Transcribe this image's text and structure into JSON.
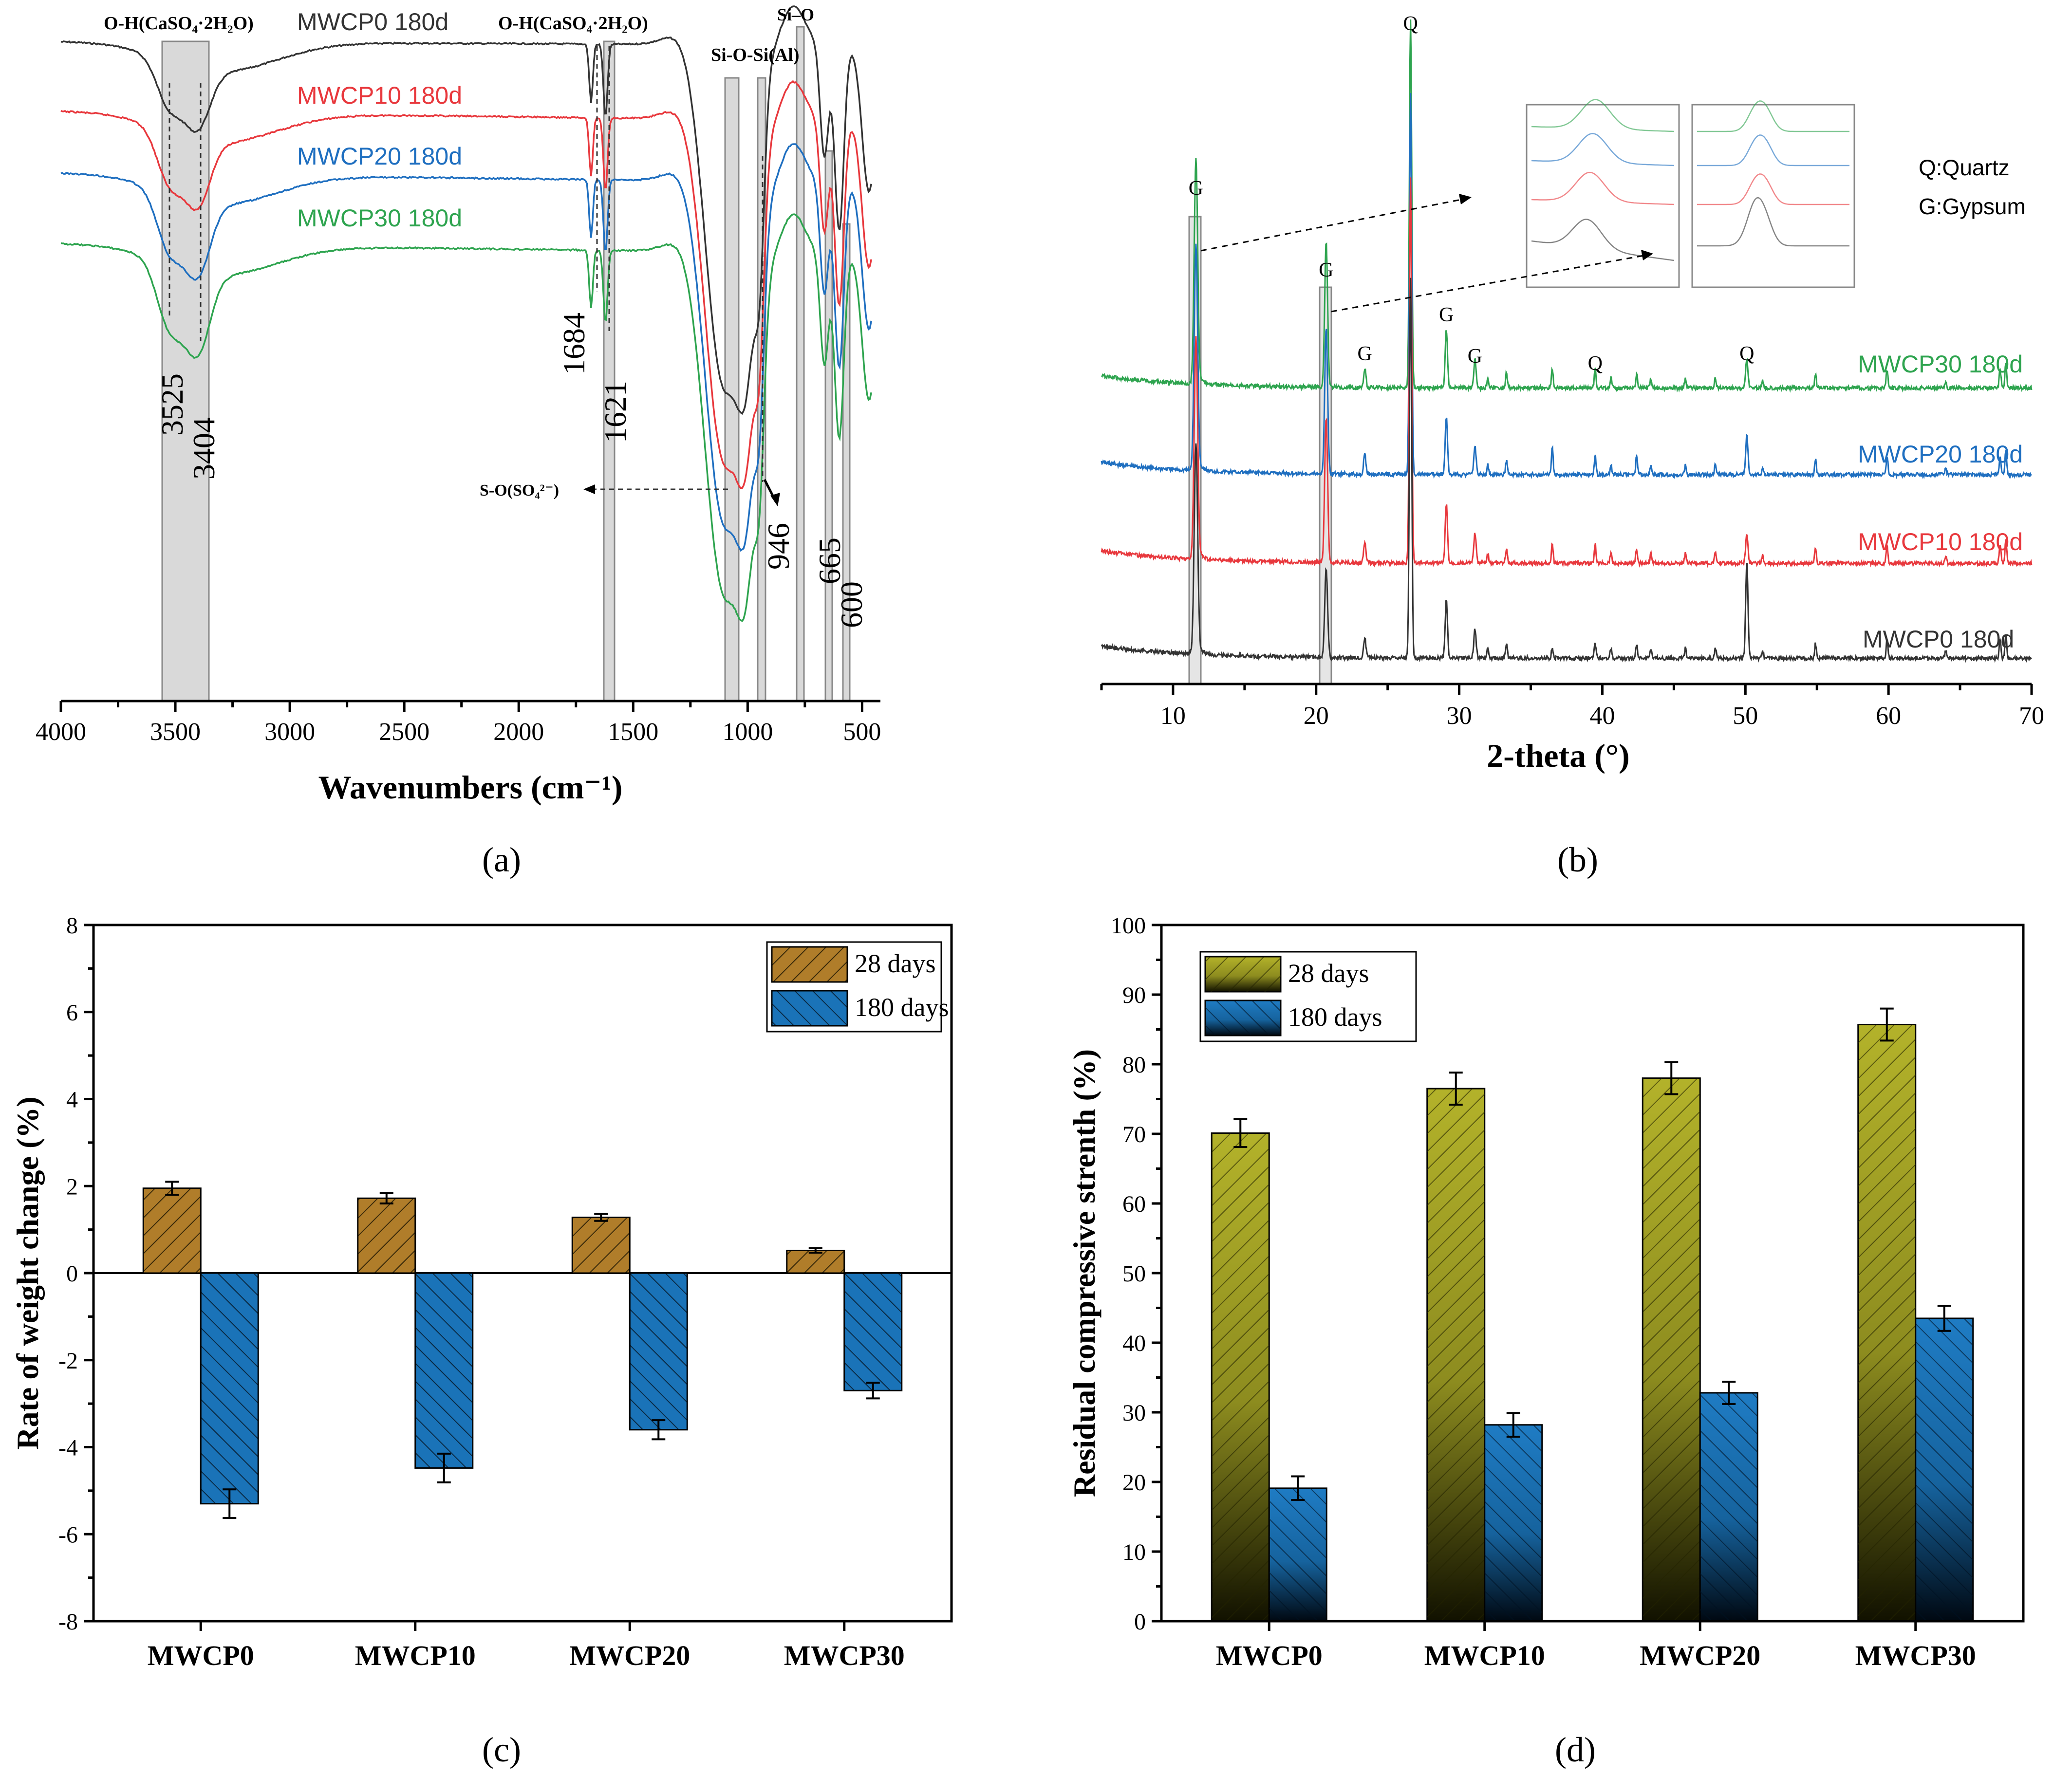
{
  "panels": {
    "a": "(a)",
    "b": "(b)",
    "c": "(c)",
    "d": "(d)"
  },
  "colors": {
    "black": "#333333",
    "red": "#e8383d",
    "blue": "#1f6fc0",
    "green": "#2ea44f",
    "band": "#d6d6d6",
    "bar28": "#b07d2a",
    "bar180": "#1a73b8",
    "bar28_d": "#a8a627",
    "bar180_d": "#1a73b8"
  },
  "chart_data": [
    {
      "type": "line",
      "panel": "a",
      "title": "",
      "xlabel": "Wavenumbers (cm⁻¹)",
      "ylabel": "",
      "xlim": [
        4000,
        400
      ],
      "xticks": [
        "4000",
        "3500",
        "3000",
        "2500",
        "2000",
        "1500",
        "1000",
        "500"
      ],
      "series": [
        {
          "name": "MWCP0  180d",
          "color": "#333333"
        },
        {
          "name": "MWCP10 180d",
          "color": "#e8383d"
        },
        {
          "name": "MWCP20 180d",
          "color": "#1f6fc0"
        },
        {
          "name": "MWCP30 180d",
          "color": "#2ea44f"
        }
      ],
      "band_labels": {
        "oh1": "O-H(CaSO₄·2H₂O)",
        "oh2": "O-H(CaSO₄·2H₂O)",
        "sio": "Si–O",
        "siosi": "Si-O-Si(Al)",
        "so": "S-O(SO₄²⁻)"
      },
      "peak_labels": [
        "3525",
        "3404",
        "1684",
        "1621",
        "946",
        "665",
        "600"
      ]
    },
    {
      "type": "line",
      "panel": "b",
      "xlabel": "2-theta (°)",
      "xlim": [
        5,
        70
      ],
      "xticks": [
        "10",
        "20",
        "30",
        "40",
        "50",
        "60",
        "70"
      ],
      "series": [
        {
          "name": "MWCP30 180d",
          "color": "#2ea44f"
        },
        {
          "name": "MWCP20 180d",
          "color": "#1f6fc0"
        },
        {
          "name": "MWCP10 180d",
          "color": "#e8383d"
        },
        {
          "name": "MWCP0  180d",
          "color": "#333333"
        }
      ],
      "peaks": [
        {
          "x": 11.6,
          "label": "G"
        },
        {
          "x": 20.7,
          "label": "G"
        },
        {
          "x": 23.4,
          "label": "G"
        },
        {
          "x": 26.6,
          "label": "Q"
        },
        {
          "x": 29.1,
          "label": "G"
        },
        {
          "x": 31.1,
          "label": "G"
        },
        {
          "x": 39.5,
          "label": "Q"
        },
        {
          "x": 50.1,
          "label": "Q"
        }
      ],
      "legend_text": [
        "Q:Quartz",
        "G:Gypsum"
      ]
    },
    {
      "type": "bar",
      "panel": "c",
      "categories": [
        "MWCP0",
        "MWCP10",
        "MWCP20",
        "MWCP30"
      ],
      "ylabel": "Rate of weight change (%)",
      "ylim": [
        -8,
        8
      ],
      "yticks": [
        "8",
        "6",
        "4",
        "2",
        "0",
        "-2",
        "-4",
        "-6",
        "-8"
      ],
      "series": [
        {
          "name": "28 days",
          "values": [
            1.95,
            1.72,
            1.28,
            0.52
          ],
          "errors": [
            0.15,
            0.12,
            0.08,
            0.05
          ]
        },
        {
          "name": "180 days",
          "values": [
            -5.3,
            -4.48,
            -3.6,
            -2.7
          ],
          "errors": [
            0.33,
            0.33,
            0.22,
            0.18
          ]
        }
      ]
    },
    {
      "type": "bar",
      "panel": "d",
      "categories": [
        "MWCP0",
        "MWCP10",
        "MWCP20",
        "MWCP30"
      ],
      "ylabel": "Residual compressive strenth (%)",
      "ylim": [
        0,
        100
      ],
      "yticks": [
        "100",
        "90",
        "80",
        "70",
        "60",
        "50",
        "40",
        "30",
        "20",
        "10",
        "0"
      ],
      "series": [
        {
          "name": "28 days",
          "values": [
            70.1,
            76.5,
            78.0,
            85.7
          ],
          "errors": [
            2.0,
            2.3,
            2.3,
            2.3
          ]
        },
        {
          "name": "180 days",
          "values": [
            19.1,
            28.2,
            32.8,
            43.5
          ],
          "errors": [
            1.7,
            1.7,
            1.6,
            1.8
          ]
        }
      ]
    }
  ]
}
